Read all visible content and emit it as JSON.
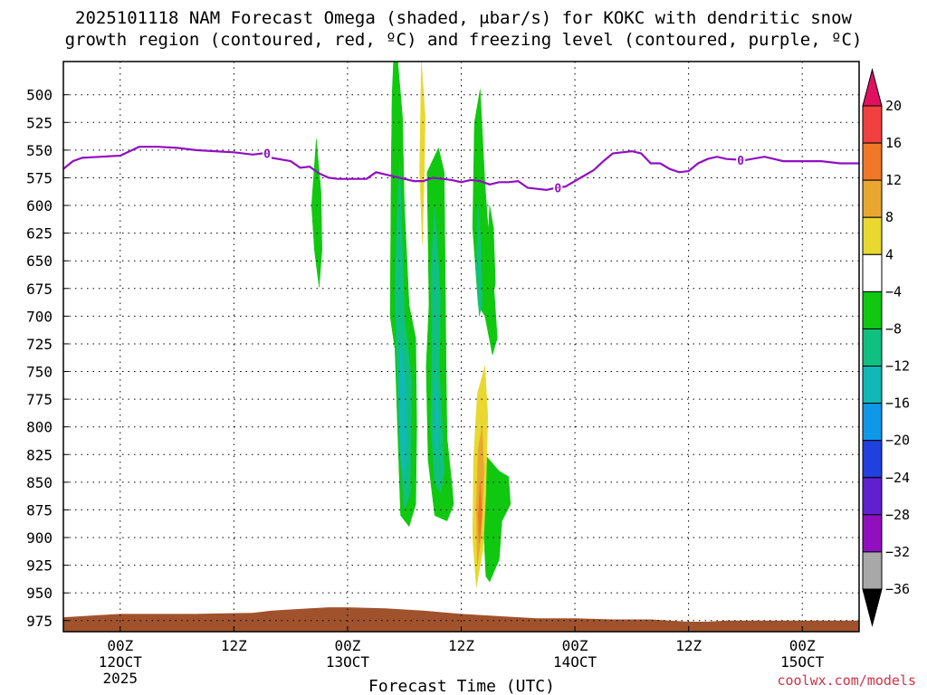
{
  "title": {
    "line1": "2025101118 NAM Forecast Omega (shaded, μbar/s) for KOKC with dendritic snow",
    "line2": "growth region (contoured, red, ºC) and freezing level (contoured, purple, ºC)"
  },
  "x_axis_title": "Forecast Time (UTC)",
  "credit": "coolwx.com/models",
  "chart_data": {
    "type": "heatmap",
    "title": "2025101118 NAM Forecast Omega (shaded, μbar/s) for KOKC with dendritic snow growth region (contoured, red, ºC) and freezing level (contoured, purple, ºC)",
    "xlabel": "Forecast Time (UTC)",
    "ylabel": "",
    "x_unit": "forecast hour from 2025-10-11 18Z",
    "xlim": [
      0,
      84
    ],
    "ylim": [
      985,
      470
    ],
    "y_ticks": [
      500,
      525,
      550,
      575,
      600,
      625,
      650,
      675,
      700,
      725,
      750,
      775,
      800,
      825,
      850,
      875,
      900,
      925,
      950,
      975
    ],
    "x_ticks": [
      {
        "x": 6,
        "label": "00Z",
        "sub1": "12OCT",
        "sub2": "2025"
      },
      {
        "x": 18,
        "label": "12Z",
        "sub1": "",
        "sub2": ""
      },
      {
        "x": 30,
        "label": "00Z",
        "sub1": "13OCT",
        "sub2": ""
      },
      {
        "x": 42,
        "label": "12Z",
        "sub1": "",
        "sub2": ""
      },
      {
        "x": 54,
        "label": "00Z",
        "sub1": "14OCT",
        "sub2": ""
      },
      {
        "x": 66,
        "label": "12Z",
        "sub1": "",
        "sub2": ""
      },
      {
        "x": 78,
        "label": "00Z",
        "sub1": "15OCT",
        "sub2": ""
      }
    ],
    "grid": true,
    "colorbar": {
      "labels": [
        "20",
        "16",
        "12",
        "8",
        "4",
        "−4",
        "−8",
        "−12",
        "−16",
        "−20",
        "−24",
        "−28",
        "−32",
        "−36"
      ],
      "colors": [
        "#e0115f",
        "#f04040",
        "#f07828",
        "#e8a830",
        "#e8d830",
        "#ffffff",
        "#10c810",
        "#10c080",
        "#10b8b8",
        "#1098e8",
        "#2040e0",
        "#6020d0",
        "#9010c0",
        "#a8a8a8",
        "#000000"
      ]
    },
    "freezing_level": {
      "label": "0",
      "color": "#9010c0",
      "x": [
        0,
        1,
        2,
        4,
        6,
        7,
        8,
        10,
        12,
        14,
        16,
        18,
        20,
        21,
        22,
        24,
        25,
        26,
        27,
        28,
        29,
        30,
        32,
        33,
        34,
        35,
        36,
        37,
        38,
        39,
        40,
        41,
        42,
        43,
        44,
        45,
        46,
        47,
        48,
        49,
        50,
        51,
        52,
        53,
        54,
        55,
        56,
        57,
        58,
        59,
        60,
        61,
        62,
        63,
        64,
        65,
        66,
        67,
        68,
        69,
        70,
        72,
        74,
        76,
        78,
        80,
        82,
        84
      ],
      "p": [
        567,
        560,
        557,
        556,
        555,
        551,
        547,
        547,
        548,
        550,
        551,
        552,
        554,
        553,
        557,
        560,
        566,
        565,
        571,
        575,
        576,
        576,
        576,
        570,
        572,
        574,
        576,
        578,
        578,
        575,
        576,
        577,
        579,
        577,
        578,
        581,
        579,
        579,
        578,
        584,
        585,
        586,
        584,
        583,
        578,
        573,
        568,
        560,
        553,
        552,
        551,
        553,
        562,
        562,
        567,
        570,
        569,
        562,
        558,
        556,
        558,
        559,
        556,
        560,
        560,
        560,
        562,
        562
      ]
    },
    "terrain": {
      "color": "#a0522d",
      "x": [
        0,
        2,
        6,
        10,
        14,
        20,
        22,
        24,
        26,
        28,
        30,
        34,
        38,
        42,
        46,
        50,
        54,
        58,
        60,
        62,
        64,
        66,
        68,
        70,
        72,
        76,
        80,
        84
      ],
      "p": [
        972,
        971,
        969,
        969,
        969,
        968,
        966,
        965,
        964,
        963,
        963,
        964,
        966,
        969,
        971,
        973,
        973,
        974,
        974,
        974,
        975,
        976,
        976,
        975,
        975,
        975,
        975,
        975
      ]
    },
    "omega_regions": [
      {
        "value": -6,
        "color": "#10c810",
        "points": [
          [
            26.7,
            540
          ],
          [
            27.2,
            588
          ],
          [
            27.3,
            640
          ],
          [
            27.0,
            674
          ],
          [
            26.5,
            640
          ],
          [
            26.2,
            600
          ]
        ]
      },
      {
        "value": -6,
        "color": "#10c810",
        "points": [
          [
            35.0,
            440
          ],
          [
            35.8,
            520
          ],
          [
            36.0,
            600
          ],
          [
            36.5,
            690
          ],
          [
            37.2,
            720
          ],
          [
            37.3,
            800
          ],
          [
            37.2,
            870
          ],
          [
            36.5,
            890
          ],
          [
            35.6,
            880
          ],
          [
            35.4,
            830
          ],
          [
            35.0,
            730
          ],
          [
            34.5,
            700
          ],
          [
            34.6,
            570
          ],
          [
            34.7,
            500
          ]
        ]
      },
      {
        "value": -6,
        "color": "#10c810",
        "points": [
          [
            39.6,
            548
          ],
          [
            40.2,
            570
          ],
          [
            40.3,
            650
          ],
          [
            40.4,
            745
          ],
          [
            40.5,
            810
          ],
          [
            41.0,
            850
          ],
          [
            41.2,
            870
          ],
          [
            40.5,
            885
          ],
          [
            39.2,
            880
          ],
          [
            38.5,
            830
          ],
          [
            38.3,
            745
          ],
          [
            38.6,
            690
          ],
          [
            38.4,
            570
          ]
        ]
      },
      {
        "value": -6,
        "color": "#10c810",
        "points": [
          [
            44.0,
            495
          ],
          [
            44.5,
            580
          ],
          [
            45.0,
            640
          ],
          [
            45.5,
            680
          ],
          [
            45.8,
            720
          ],
          [
            45.3,
            735
          ],
          [
            44.5,
            700
          ],
          [
            43.8,
            690
          ],
          [
            43.2,
            620
          ],
          [
            43.4,
            525
          ]
        ]
      },
      {
        "value": -6,
        "color": "#10c810",
        "points": [
          [
            45.0,
            600
          ],
          [
            45.4,
            620
          ],
          [
            45.6,
            670
          ],
          [
            45.1,
            695
          ],
          [
            44.6,
            670
          ]
        ]
      },
      {
        "value": -6,
        "color": "#10c810",
        "points": [
          [
            44.5,
            825
          ],
          [
            46.0,
            840
          ],
          [
            47.0,
            845
          ],
          [
            47.2,
            870
          ],
          [
            46.3,
            885
          ],
          [
            46.0,
            920
          ],
          [
            45.0,
            940
          ],
          [
            44.6,
            935
          ],
          [
            44.3,
            880
          ]
        ]
      },
      {
        "value": -10,
        "color": "#10c080",
        "points": [
          [
            35.5,
            560
          ],
          [
            35.8,
            640
          ],
          [
            36.0,
            700
          ],
          [
            36.8,
            760
          ],
          [
            36.6,
            860
          ],
          [
            36.0,
            875
          ],
          [
            35.5,
            820
          ],
          [
            35.2,
            740
          ],
          [
            35.0,
            680
          ],
          [
            35.2,
            620
          ]
        ]
      },
      {
        "value": -10,
        "color": "#10c080",
        "points": [
          [
            39.2,
            600
          ],
          [
            39.8,
            680
          ],
          [
            39.7,
            750
          ],
          [
            40.2,
            840
          ],
          [
            39.8,
            860
          ],
          [
            39.2,
            850
          ],
          [
            38.8,
            800
          ],
          [
            38.9,
            730
          ],
          [
            38.8,
            660
          ]
        ]
      },
      {
        "value": -10,
        "color": "#10c080",
        "points": [
          [
            43.8,
            600
          ],
          [
            44.1,
            640
          ],
          [
            44.2,
            690
          ],
          [
            43.9,
            700
          ],
          [
            43.6,
            660
          ]
        ]
      },
      {
        "value": -14,
        "color": "#10b8b8",
        "points": [
          [
            35.6,
            720
          ],
          [
            36.1,
            760
          ],
          [
            36.2,
            830
          ],
          [
            35.9,
            850
          ],
          [
            35.5,
            800
          ]
        ]
      },
      {
        "value": -14,
        "color": "#10b8b8",
        "points": [
          [
            39.3,
            750
          ],
          [
            39.6,
            790
          ],
          [
            39.5,
            830
          ],
          [
            39.2,
            810
          ]
        ]
      },
      {
        "value": 6,
        "color": "#e8d830",
        "points": [
          [
            37.8,
            470
          ],
          [
            38.2,
            520
          ],
          [
            38.1,
            570
          ],
          [
            37.9,
            635
          ],
          [
            37.6,
            570
          ],
          [
            37.7,
            520
          ]
        ]
      },
      {
        "value": 6,
        "color": "#e8d830",
        "points": [
          [
            44.5,
            745
          ],
          [
            44.8,
            790
          ],
          [
            44.6,
            860
          ],
          [
            44.3,
            910
          ],
          [
            43.6,
            945
          ],
          [
            43.2,
            900
          ],
          [
            43.3,
            830
          ],
          [
            43.7,
            770
          ]
        ]
      },
      {
        "value": 10,
        "color": "#e8a830",
        "points": [
          [
            44.2,
            800
          ],
          [
            44.4,
            840
          ],
          [
            44.1,
            900
          ],
          [
            43.7,
            925
          ],
          [
            43.6,
            870
          ],
          [
            43.8,
            820
          ]
        ]
      },
      {
        "value": 14,
        "color": "#f07828",
        "points": [
          [
            44.0,
            850
          ],
          [
            44.2,
            880
          ],
          [
            43.9,
            905
          ],
          [
            43.8,
            880
          ]
        ]
      }
    ],
    "legend": "colorbar right"
  }
}
